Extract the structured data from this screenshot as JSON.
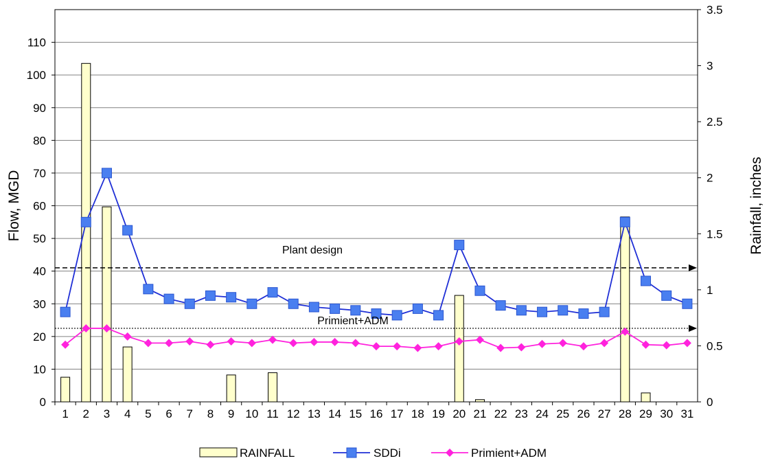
{
  "chart_data": {
    "type": "bar+line",
    "categories": [
      "1",
      "2",
      "3",
      "4",
      "5",
      "6",
      "7",
      "8",
      "9",
      "10",
      "11",
      "12",
      "13",
      "14",
      "15",
      "16",
      "17",
      "18",
      "19",
      "20",
      "21",
      "22",
      "23",
      "24",
      "25",
      "26",
      "27",
      "28",
      "29",
      "30",
      "31"
    ],
    "series": [
      {
        "name": "RAINFALL",
        "type": "bar",
        "axis": "right",
        "color": "#ffffcc",
        "values": [
          0.22,
          3.02,
          1.74,
          0.49,
          0,
          0,
          0,
          0,
          0.24,
          0,
          0.26,
          0,
          0,
          0,
          0,
          0,
          0,
          0,
          0,
          0.95,
          0.02,
          0,
          0,
          0,
          0,
          0,
          0,
          1.65,
          0.08,
          0,
          0
        ]
      },
      {
        "name": "SDDi",
        "type": "line",
        "axis": "left",
        "color": "#1f2fd6",
        "marker_color": "#4a7ff0",
        "marker": "square",
        "values": [
          27.5,
          55,
          70,
          52.5,
          34.5,
          31.5,
          30,
          32.5,
          32,
          30,
          33.5,
          30,
          29,
          28.5,
          28,
          27,
          26.5,
          28.5,
          26.5,
          48,
          34,
          29.5,
          28,
          27.5,
          28,
          27,
          27.5,
          55,
          37,
          32.5,
          30
        ]
      },
      {
        "name": "Primient+ADM",
        "type": "line",
        "axis": "left",
        "color": "#ff22dd",
        "marker": "diamond",
        "values": [
          17.5,
          22.5,
          22.5,
          20,
          18,
          18,
          18.5,
          17.5,
          18.5,
          18,
          19,
          18,
          18.3,
          18.3,
          18,
          17,
          17,
          16.5,
          17,
          18.5,
          19,
          16.5,
          16.7,
          17.7,
          18,
          17,
          18,
          21.5,
          17.5,
          17.3,
          18
        ]
      }
    ],
    "reference_lines": [
      {
        "label": "Plant design",
        "value": 41,
        "style": "dashed"
      },
      {
        "label": "Primient+ADM",
        "value": 22.5,
        "style": "dotted"
      }
    ],
    "title": "",
    "xlabel": "",
    "ylabel": "Flow, MGD",
    "y2label": "Rainfall, inches",
    "ylim": [
      0,
      120
    ],
    "y2lim": [
      0,
      3.5
    ],
    "yticks": [
      0,
      10,
      20,
      30,
      40,
      50,
      60,
      70,
      80,
      90,
      100,
      110
    ],
    "y2ticks": [
      0,
      0.5,
      1,
      1.5,
      2,
      2.5,
      3,
      3.5
    ],
    "y2tick_labels": [
      "0",
      "0.5",
      "1",
      "1.5",
      "2",
      "2.5",
      "3",
      "3.5"
    ],
    "grid": true,
    "legend": "bottom",
    "legend_entries": [
      "RAINFALL",
      "SDDi",
      "Primient+ADM"
    ]
  }
}
